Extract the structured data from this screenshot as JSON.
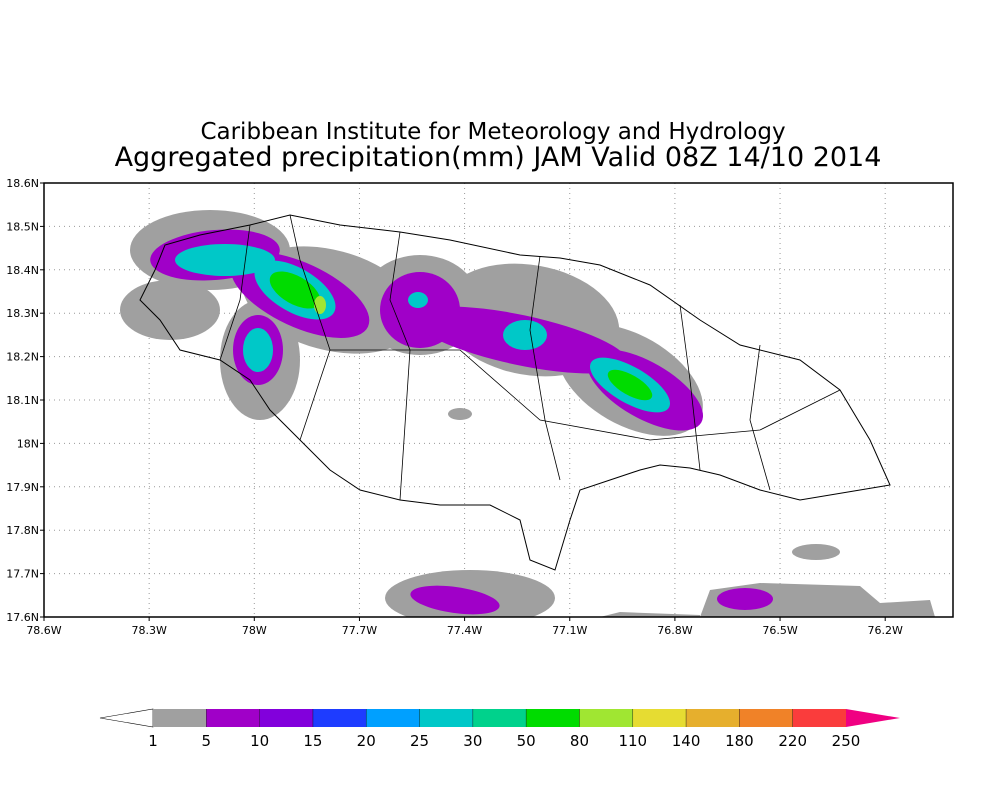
{
  "title": [
    "Caribbean Institute for Meteorology and Hydrology",
    "Aggregated precipitation(mm) JAM Valid 08Z 14/10 2014"
  ],
  "x_axis": {
    "ticks": [
      "78.6W",
      "78.3W",
      "78W",
      "77.7W",
      "77.4W",
      "77.1W",
      "76.8W",
      "76.5W",
      "76.2W"
    ]
  },
  "y_axis": {
    "ticks": [
      "18.6N",
      "18.5N",
      "18.4N",
      "18.3N",
      "18.2N",
      "18.1N",
      "18N",
      "17.9N",
      "17.8N",
      "17.7N",
      "17.6N"
    ]
  },
  "colorbar": {
    "levels": [
      1,
      5,
      10,
      15,
      20,
      25,
      30,
      50,
      80,
      110,
      140,
      180,
      220,
      250
    ],
    "colors": [
      "#ffffff",
      "#a0a0a0",
      "#a000c8",
      "#8200dc",
      "#1e3cff",
      "#00a0ff",
      "#00c8c8",
      "#00d28c",
      "#00dc00",
      "#a0e632",
      "#e6dc32",
      "#e6af2d",
      "#f08228",
      "#fa3c3c",
      "#f00082"
    ]
  }
}
